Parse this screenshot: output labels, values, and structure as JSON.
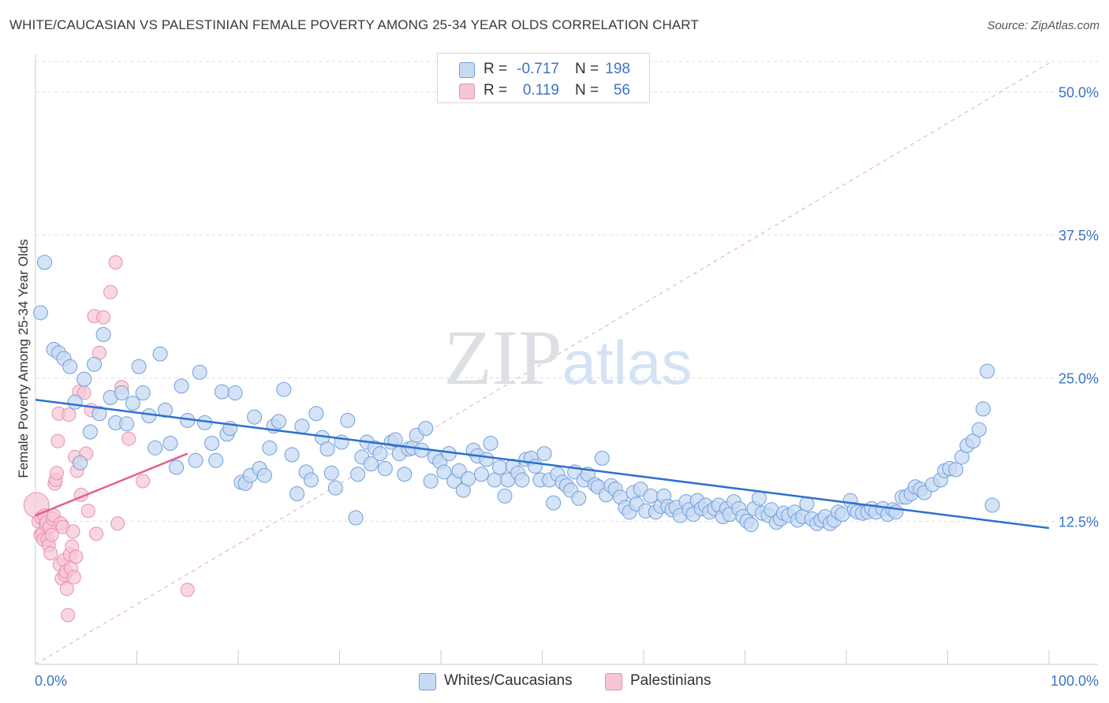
{
  "title": "WHITE/CAUCASIAN VS PALESTINIAN FEMALE POVERTY AMONG 25-34 YEAR OLDS CORRELATION CHART",
  "source": "Source: ZipAtlas.com",
  "watermark": "ZIPatlas",
  "colors": {
    "blue_fill": "#c7daf3",
    "blue_stroke": "#6f9fdc",
    "blue_line": "#2d6fd0",
    "pink_fill": "#f7c6d4",
    "pink_stroke": "#e98fab",
    "pink_line": "#e2608a",
    "axis_text": "#3b74c6",
    "grid": "#dddddd"
  },
  "legend": {
    "r_label": "R =",
    "n_label": "N =",
    "rows": [
      {
        "series": "Whites/Caucasians",
        "r": "-0.717",
        "n": "198",
        "color": "#c7daf3"
      },
      {
        "series": "Palestinians",
        "r": "0.119",
        "n": "56",
        "color": "#f7c6d4"
      }
    ]
  },
  "chart_data": {
    "type": "scatter",
    "title": "WHITE/CAUCASIAN VS PALESTINIAN FEMALE POVERTY AMONG 25-34 YEAR OLDS CORRELATION CHART",
    "xlabel": "",
    "ylabel": "Female Poverty Among 25-34 Year Olds",
    "xlim": [
      0,
      100
    ],
    "ylim": [
      0,
      50
    ],
    "x_tick_labels": [
      "0.0%",
      "100.0%"
    ],
    "y_ticks": [
      12.5,
      25.0,
      37.5,
      50.0
    ],
    "y_tick_labels": [
      "12.5%",
      "25.0%",
      "37.5%",
      "50.0%"
    ],
    "grid": true,
    "legend_position": "top-center",
    "series": [
      {
        "name": "Whites/Caucasians",
        "r": -0.717,
        "n": 198,
        "trend": {
          "x": [
            0,
            100
          ],
          "y": [
            23.1,
            11.9
          ]
        },
        "points": [
          [
            0.5,
            30.7
          ],
          [
            0.9,
            35.1
          ],
          [
            1.8,
            27.5
          ],
          [
            2.3,
            27.2
          ],
          [
            2.8,
            26.7
          ],
          [
            3.4,
            26
          ],
          [
            3.9,
            22.9
          ],
          [
            4.4,
            17.6
          ],
          [
            4.8,
            24.9
          ],
          [
            5.4,
            20.3
          ],
          [
            5.8,
            26.2
          ],
          [
            6.3,
            21.9
          ],
          [
            6.7,
            28.8
          ],
          [
            7.4,
            23.3
          ],
          [
            7.9,
            21.1
          ],
          [
            8.5,
            23.7
          ],
          [
            9,
            21
          ],
          [
            9.6,
            22.8
          ],
          [
            10.2,
            26
          ],
          [
            10.6,
            23.7
          ],
          [
            11.2,
            21.7
          ],
          [
            11.8,
            18.9
          ],
          [
            12.3,
            27.1
          ],
          [
            12.8,
            22.2
          ],
          [
            13.3,
            19.3
          ],
          [
            13.9,
            17.2
          ],
          [
            14.4,
            24.3
          ],
          [
            15,
            21.3
          ],
          [
            15.8,
            17.8
          ],
          [
            16.2,
            25.5
          ],
          [
            16.7,
            21.1
          ],
          [
            17.4,
            19.3
          ],
          [
            17.8,
            17.8
          ],
          [
            18.4,
            23.8
          ],
          [
            18.9,
            20.1
          ],
          [
            19.2,
            20.6
          ],
          [
            19.7,
            23.7
          ],
          [
            20.3,
            15.9
          ],
          [
            20.7,
            15.8
          ],
          [
            21.2,
            16.5
          ],
          [
            21.6,
            21.6
          ],
          [
            22.1,
            17.1
          ],
          [
            22.6,
            16.5
          ],
          [
            23.1,
            18.9
          ],
          [
            23.5,
            20.8
          ],
          [
            24,
            21.2
          ],
          [
            24.5,
            24
          ],
          [
            25.3,
            18.3
          ],
          [
            25.8,
            14.9
          ],
          [
            26.3,
            20.8
          ],
          [
            26.7,
            16.8
          ],
          [
            27.2,
            16.1
          ],
          [
            27.7,
            21.9
          ],
          [
            28.3,
            19.8
          ],
          [
            28.8,
            18.8
          ],
          [
            29.2,
            16.7
          ],
          [
            29.6,
            15.4
          ],
          [
            30.2,
            19.4
          ],
          [
            30.8,
            21.3
          ],
          [
            31.6,
            12.8
          ],
          [
            31.8,
            16.6
          ],
          [
            32.2,
            18.1
          ],
          [
            32.7,
            19.4
          ],
          [
            33.1,
            17.5
          ],
          [
            33.5,
            18.9
          ],
          [
            34,
            18.4
          ],
          [
            34.5,
            17.1
          ],
          [
            35.1,
            19.4
          ],
          [
            35.5,
            19.6
          ],
          [
            35.9,
            18.4
          ],
          [
            36.4,
            16.6
          ],
          [
            36.8,
            18.8
          ],
          [
            37.2,
            18.9
          ],
          [
            37.6,
            20
          ],
          [
            38.1,
            18.7
          ],
          [
            38.5,
            20.6
          ],
          [
            39,
            16
          ],
          [
            39.4,
            18.1
          ],
          [
            39.9,
            17.7
          ],
          [
            40.3,
            16.8
          ],
          [
            40.8,
            18.4
          ],
          [
            41.3,
            16
          ],
          [
            41.8,
            16.9
          ],
          [
            42.2,
            15.2
          ],
          [
            42.7,
            16.2
          ],
          [
            43.2,
            18.7
          ],
          [
            43.6,
            18.2
          ],
          [
            44,
            16.6
          ],
          [
            44.5,
            17.9
          ],
          [
            44.9,
            19.3
          ],
          [
            45.3,
            16.1
          ],
          [
            45.8,
            17.2
          ],
          [
            46.3,
            14.7
          ],
          [
            46.6,
            16.1
          ],
          [
            47.1,
            17.3
          ],
          [
            47.6,
            16.7
          ],
          [
            48,
            16.1
          ],
          [
            48.4,
            17.9
          ],
          [
            48.9,
            18
          ],
          [
            49.3,
            17.3
          ],
          [
            49.8,
            16.1
          ],
          [
            50.2,
            18.4
          ],
          [
            50.7,
            16.1
          ],
          [
            51.1,
            14.1
          ],
          [
            51.5,
            16.6
          ],
          [
            52,
            15.9
          ],
          [
            52.4,
            15.6
          ],
          [
            52.8,
            15.2
          ],
          [
            53.2,
            16.8
          ],
          [
            53.6,
            14.5
          ],
          [
            54.1,
            16.1
          ],
          [
            54.5,
            16.6
          ],
          [
            55.2,
            15.7
          ],
          [
            55.5,
            15.5
          ],
          [
            55.9,
            18
          ],
          [
            56.3,
            14.8
          ],
          [
            56.8,
            15.6
          ],
          [
            57.2,
            15.3
          ],
          [
            57.7,
            14.6
          ],
          [
            58.2,
            13.7
          ],
          [
            58.6,
            13.3
          ],
          [
            59,
            15
          ],
          [
            59.3,
            14
          ],
          [
            59.7,
            15.3
          ],
          [
            60.2,
            13.4
          ],
          [
            60.7,
            14.7
          ],
          [
            61.2,
            13.3
          ],
          [
            61.7,
            13.8
          ],
          [
            62,
            14.7
          ],
          [
            62.4,
            13.8
          ],
          [
            62.8,
            13.5
          ],
          [
            63.2,
            13.7
          ],
          [
            63.6,
            13
          ],
          [
            64.2,
            14.2
          ],
          [
            64.5,
            13.5
          ],
          [
            64.9,
            13.1
          ],
          [
            65.3,
            14.3
          ],
          [
            65.7,
            13.6
          ],
          [
            66.1,
            13.9
          ],
          [
            66.5,
            13.3
          ],
          [
            67,
            13.6
          ],
          [
            67.4,
            13.9
          ],
          [
            67.8,
            12.9
          ],
          [
            68.2,
            13.6
          ],
          [
            68.5,
            13.1
          ],
          [
            68.9,
            14.2
          ],
          [
            69.4,
            13.6
          ],
          [
            69.8,
            12.9
          ],
          [
            70.2,
            12.5
          ],
          [
            70.6,
            12.2
          ],
          [
            70.9,
            13.6
          ],
          [
            71.4,
            14.5
          ],
          [
            71.7,
            13.2
          ],
          [
            72.3,
            13
          ],
          [
            72.6,
            13.5
          ],
          [
            73.1,
            12.4
          ],
          [
            73.5,
            12.7
          ],
          [
            73.8,
            13.2
          ],
          [
            74.3,
            13
          ],
          [
            74.9,
            13.3
          ],
          [
            75.2,
            12.6
          ],
          [
            75.7,
            12.9
          ],
          [
            76.1,
            14
          ],
          [
            76.6,
            12.7
          ],
          [
            77.1,
            12.3
          ],
          [
            77.5,
            12.6
          ],
          [
            77.9,
            12.9
          ],
          [
            78.4,
            12.3
          ],
          [
            78.8,
            12.6
          ],
          [
            79.2,
            13.3
          ],
          [
            79.6,
            13.1
          ],
          [
            80.4,
            14.3
          ],
          [
            80.8,
            13.5
          ],
          [
            81.1,
            13.3
          ],
          [
            81.6,
            13.2
          ],
          [
            82.1,
            13.3
          ],
          [
            82.5,
            13.6
          ],
          [
            82.9,
            13.3
          ],
          [
            83.6,
            13.6
          ],
          [
            84.1,
            13.1
          ],
          [
            84.6,
            13.5
          ],
          [
            84.9,
            13.3
          ],
          [
            85.5,
            14.6
          ],
          [
            85.9,
            14.6
          ],
          [
            86.4,
            14.9
          ],
          [
            86.8,
            15.5
          ],
          [
            87.3,
            15.3
          ],
          [
            87.7,
            15
          ],
          [
            88.5,
            15.7
          ],
          [
            89.3,
            16.1
          ],
          [
            89.7,
            16.9
          ],
          [
            90.2,
            17.1
          ],
          [
            90.8,
            17
          ],
          [
            91.4,
            18.1
          ],
          [
            91.9,
            19.1
          ],
          [
            92.5,
            19.5
          ],
          [
            93.1,
            20.5
          ],
          [
            93.5,
            22.3
          ],
          [
            93.9,
            25.6
          ],
          [
            94.4,
            13.9
          ]
        ]
      },
      {
        "name": "Palestinians",
        "r": 0.119,
        "n": 56,
        "trend": {
          "x": [
            0,
            15
          ],
          "y": [
            13.0,
            18.4
          ]
        },
        "points": [
          [
            0.1,
            13.9
          ],
          [
            0.3,
            12.5
          ],
          [
            0.5,
            11.3
          ],
          [
            0.6,
            12.8
          ],
          [
            0.7,
            11.4
          ],
          [
            0.8,
            10.9
          ],
          [
            0.9,
            13
          ],
          [
            1,
            12.2
          ],
          [
            1.1,
            12.4
          ],
          [
            1.2,
            10.9
          ],
          [
            1.3,
            10.4
          ],
          [
            1.4,
            12
          ],
          [
            1.5,
            9.7
          ],
          [
            1.6,
            11.3
          ],
          [
            1.7,
            12.7
          ],
          [
            1.8,
            13
          ],
          [
            1.9,
            15.8
          ],
          [
            2,
            16.1
          ],
          [
            2.1,
            16.7
          ],
          [
            2.2,
            19.5
          ],
          [
            2.3,
            21.9
          ],
          [
            2.4,
            8.7
          ],
          [
            2.5,
            12.3
          ],
          [
            2.6,
            7.5
          ],
          [
            2.7,
            12
          ],
          [
            2.8,
            9.1
          ],
          [
            2.9,
            7.8
          ],
          [
            3,
            8.1
          ],
          [
            3.1,
            6.6
          ],
          [
            3.2,
            4.3
          ],
          [
            3.3,
            21.8
          ],
          [
            3.4,
            9.6
          ],
          [
            3.5,
            8.4
          ],
          [
            3.6,
            10.3
          ],
          [
            3.7,
            11.6
          ],
          [
            3.8,
            7.6
          ],
          [
            3.9,
            18.1
          ],
          [
            4,
            9.4
          ],
          [
            4.1,
            16.9
          ],
          [
            4.3,
            23.8
          ],
          [
            4.5,
            14.8
          ],
          [
            4.8,
            23.7
          ],
          [
            5,
            18.4
          ],
          [
            5.2,
            13.4
          ],
          [
            5.5,
            22.2
          ],
          [
            5.8,
            30.4
          ],
          [
            6,
            11.4
          ],
          [
            6.3,
            27.2
          ],
          [
            6.7,
            30.3
          ],
          [
            7.4,
            32.5
          ],
          [
            7.9,
            35.1
          ],
          [
            8.1,
            12.3
          ],
          [
            8.5,
            24.2
          ],
          [
            9.2,
            19.7
          ],
          [
            10.6,
            16
          ],
          [
            15,
            6.5
          ]
        ]
      }
    ]
  }
}
